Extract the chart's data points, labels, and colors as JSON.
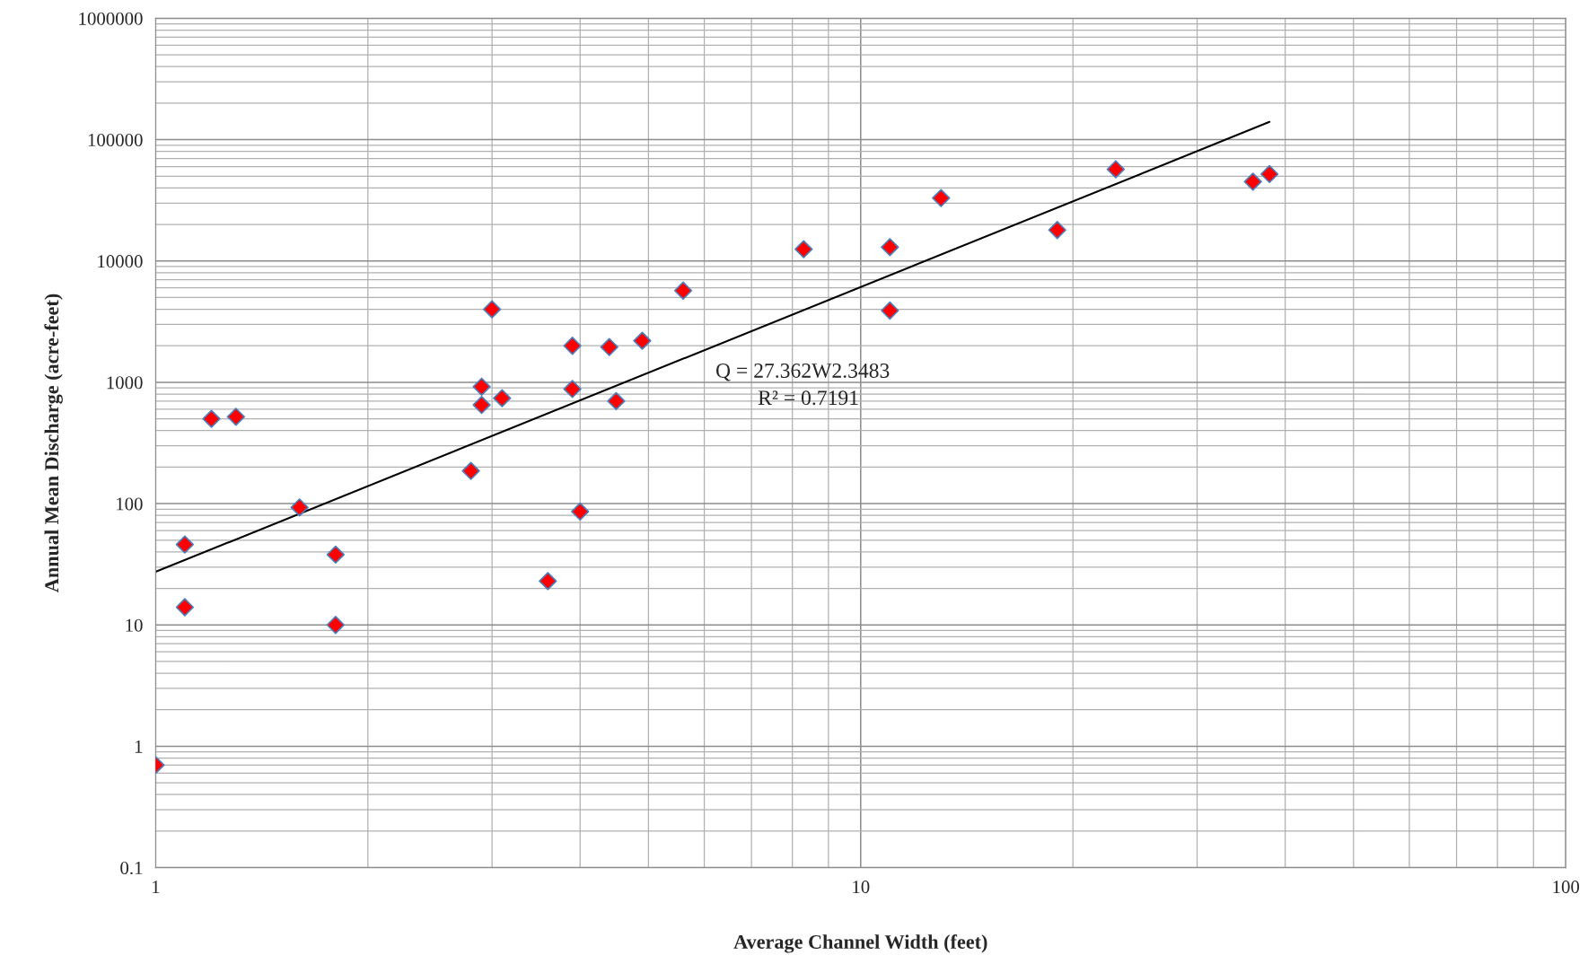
{
  "chart_data": {
    "type": "scatter",
    "xlabel": "Average Channel Width (feet)",
    "ylabel": "Annual Mean Discharge (acre-feet)",
    "log": "xy",
    "grid": true,
    "xlim": [
      1,
      100
    ],
    "xticks": [
      1,
      10,
      100
    ],
    "ylim": [
      0.1,
      1000000
    ],
    "yticks": [
      0.1,
      1,
      10,
      100,
      1000,
      10000,
      100000,
      1000000
    ],
    "series": [
      {
        "marker": "diamond",
        "color": "#ff0000",
        "x": [
          1,
          1.1,
          1.1,
          1.2,
          1.3,
          1.6,
          1.8,
          1.8,
          2.8,
          2.9,
          2.9,
          3.0,
          3.1,
          3.6,
          3.9,
          3.9,
          4.0,
          4.4,
          4.5,
          4.9,
          5.6,
          8.3,
          11,
          11,
          13,
          19,
          23,
          36,
          38
        ],
        "values": [
          0.7,
          46,
          14,
          500,
          520,
          93,
          38,
          10,
          186,
          920,
          650,
          4000,
          740,
          23,
          2000,
          880,
          86,
          1950,
          700,
          2200,
          5700,
          12500,
          13000,
          3900,
          33000,
          18000,
          57000,
          45000,
          52000
        ]
      },
      {
        "type": "line",
        "color": "#000000",
        "x": [
          1,
          38
        ],
        "values": [
          27.4,
          140000
        ]
      }
    ],
    "annotations": [
      "Q = 27.362W2.3483",
      "R² = 0.7191"
    ]
  }
}
